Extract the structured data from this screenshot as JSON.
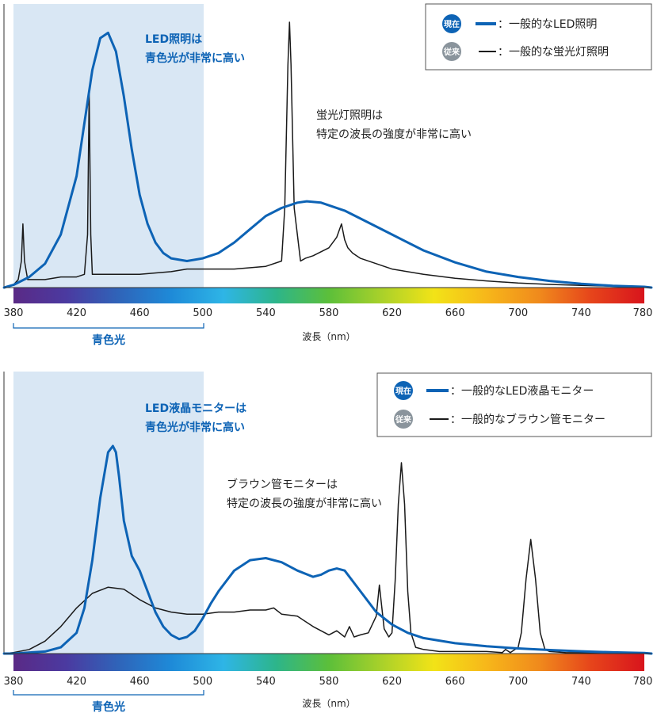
{
  "colors": {
    "led": "#0d63b5",
    "legacy": "#1a1a1a",
    "blue_band": "#d9e7f4",
    "badge_now": "#0d63b5",
    "badge_old": "#8a949c",
    "axis_text": "#222222"
  },
  "spectrum_gradient": [
    "#5a2a86",
    "#4b3aa0",
    "#2f64b9",
    "#1e8ad8",
    "#2eb5e6",
    "#2db58a",
    "#5cbf3a",
    "#a9d12a",
    "#f2e317",
    "#f7b71a",
    "#f08a1c",
    "#e6441b",
    "#d8141c"
  ],
  "charts": [
    {
      "legend": {
        "now_badge": "現在",
        "old_badge": "従来",
        "now_label": "：一般的なLED照明",
        "old_label": "：一般的な蛍光灯照明"
      },
      "annotations": {
        "blue_line1": "LED照明は",
        "blue_line2": "青色光が非常に高い",
        "black_line1": "蛍光灯照明は",
        "black_line2": "特定の波長の強度が非常に高い"
      },
      "band_label": "青色光",
      "xlabel": "波長（nm）",
      "xticks": [
        "380",
        "420",
        "460",
        "500",
        "540",
        "580",
        "620",
        "660",
        "700",
        "740",
        "780"
      ]
    },
    {
      "legend": {
        "now_badge": "現在",
        "old_badge": "従来",
        "now_label": "：一般的なLED液晶モニター",
        "old_label": "：一般的なブラウン管モニター"
      },
      "annotations": {
        "blue_line1": "LED液晶モニターは",
        "blue_line2": "青色光が非常に高い",
        "black_line1": "ブラウン管モニターは",
        "black_line2": "特定の波長の強度が非常に高い"
      },
      "band_label": "青色光",
      "xlabel": "波長（nm）",
      "xticks": [
        "380",
        "420",
        "460",
        "500",
        "540",
        "580",
        "620",
        "660",
        "700",
        "740",
        "780"
      ]
    }
  ],
  "chart_data": [
    {
      "type": "line",
      "xlabel": "波長（nm）",
      "ylabel": "",
      "xlim": [
        380,
        780
      ],
      "ylim": [
        0,
        1
      ],
      "highlight_band": {
        "label": "青色光",
        "range": [
          380,
          500
        ]
      },
      "series": [
        {
          "name": "一般的なLED照明",
          "x": [
            374,
            380,
            390,
            400,
            410,
            420,
            425,
            430,
            435,
            440,
            445,
            450,
            455,
            460,
            465,
            470,
            475,
            480,
            490,
            500,
            510,
            520,
            530,
            540,
            550,
            560,
            566,
            575,
            590,
            600,
            620,
            640,
            660,
            680,
            700,
            720,
            740,
            760,
            780,
            790
          ],
          "y": [
            0.0,
            0.01,
            0.04,
            0.09,
            0.2,
            0.42,
            0.62,
            0.82,
            0.94,
            0.96,
            0.89,
            0.72,
            0.52,
            0.35,
            0.24,
            0.17,
            0.13,
            0.11,
            0.1,
            0.11,
            0.13,
            0.17,
            0.22,
            0.27,
            0.3,
            0.32,
            0.325,
            0.32,
            0.29,
            0.26,
            0.2,
            0.14,
            0.095,
            0.06,
            0.04,
            0.025,
            0.014,
            0.007,
            0.003,
            0.0
          ]
        },
        {
          "name": "一般的な蛍光灯照明",
          "x": [
            374,
            380,
            383,
            385,
            386,
            387,
            389,
            392,
            400,
            410,
            420,
            425,
            427,
            428,
            429,
            430,
            432,
            440,
            460,
            480,
            490,
            500,
            520,
            540,
            550,
            552,
            554,
            555,
            556,
            558,
            562,
            565,
            570,
            580,
            585,
            588,
            590,
            592,
            595,
            600,
            620,
            640,
            660,
            680,
            700,
            720,
            740,
            760,
            780,
            790
          ],
          "y": [
            0.0,
            0.01,
            0.03,
            0.1,
            0.24,
            0.1,
            0.03,
            0.03,
            0.03,
            0.04,
            0.04,
            0.05,
            0.2,
            0.74,
            0.2,
            0.05,
            0.05,
            0.05,
            0.05,
            0.06,
            0.07,
            0.07,
            0.07,
            0.08,
            0.1,
            0.3,
            0.84,
            1.0,
            0.84,
            0.3,
            0.1,
            0.11,
            0.12,
            0.15,
            0.19,
            0.24,
            0.18,
            0.15,
            0.13,
            0.11,
            0.07,
            0.05,
            0.035,
            0.025,
            0.017,
            0.012,
            0.008,
            0.005,
            0.003,
            0.0
          ]
        }
      ]
    },
    {
      "type": "line",
      "xlabel": "波長（nm）",
      "ylabel": "",
      "xlim": [
        380,
        780
      ],
      "ylim": [
        0,
        1
      ],
      "highlight_band": {
        "label": "青色光",
        "range": [
          380,
          500
        ]
      },
      "series": [
        {
          "name": "一般的なLED液晶モニター",
          "x": [
            374,
            380,
            400,
            410,
            420,
            425,
            430,
            435,
            440,
            443,
            445,
            447,
            450,
            455,
            460,
            465,
            470,
            475,
            480,
            485,
            490,
            495,
            500,
            505,
            510,
            520,
            530,
            540,
            550,
            560,
            570,
            575,
            580,
            585,
            590,
            600,
            610,
            620,
            630,
            640,
            660,
            680,
            700,
            720,
            740,
            760,
            780,
            790
          ],
          "y": [
            0.0,
            0.0,
            0.01,
            0.03,
            0.1,
            0.22,
            0.45,
            0.75,
            0.97,
            1.0,
            0.97,
            0.85,
            0.64,
            0.47,
            0.4,
            0.3,
            0.2,
            0.13,
            0.09,
            0.07,
            0.08,
            0.11,
            0.17,
            0.24,
            0.3,
            0.4,
            0.45,
            0.46,
            0.44,
            0.4,
            0.37,
            0.38,
            0.4,
            0.41,
            0.4,
            0.3,
            0.2,
            0.14,
            0.1,
            0.075,
            0.05,
            0.035,
            0.025,
            0.017,
            0.011,
            0.006,
            0.003,
            0.0
          ]
        },
        {
          "name": "一般的なブラウン管モニター",
          "x": [
            374,
            380,
            390,
            400,
            410,
            420,
            430,
            440,
            450,
            460,
            470,
            480,
            490,
            500,
            510,
            520,
            530,
            540,
            545,
            550,
            560,
            570,
            580,
            585,
            590,
            593,
            596,
            600,
            605,
            610,
            612,
            615,
            618,
            620,
            622,
            624,
            626,
            628,
            630,
            632,
            635,
            640,
            650,
            660,
            680,
            690,
            692,
            695,
            698,
            700,
            702,
            705,
            708,
            711,
            714,
            717,
            720,
            730,
            760,
            780,
            790
          ],
          "y": [
            0.0,
            0.005,
            0.02,
            0.06,
            0.13,
            0.22,
            0.29,
            0.32,
            0.31,
            0.26,
            0.22,
            0.2,
            0.19,
            0.19,
            0.2,
            0.2,
            0.21,
            0.21,
            0.22,
            0.19,
            0.18,
            0.13,
            0.09,
            0.11,
            0.08,
            0.13,
            0.08,
            0.09,
            0.1,
            0.18,
            0.33,
            0.12,
            0.08,
            0.1,
            0.35,
            0.72,
            0.92,
            0.72,
            0.3,
            0.1,
            0.03,
            0.02,
            0.01,
            0.01,
            0.01,
            0.005,
            0.02,
            0.005,
            0.02,
            0.03,
            0.1,
            0.36,
            0.55,
            0.36,
            0.1,
            0.02,
            0.01,
            0.005,
            0.003,
            0.002,
            0.0
          ]
        }
      ]
    }
  ]
}
